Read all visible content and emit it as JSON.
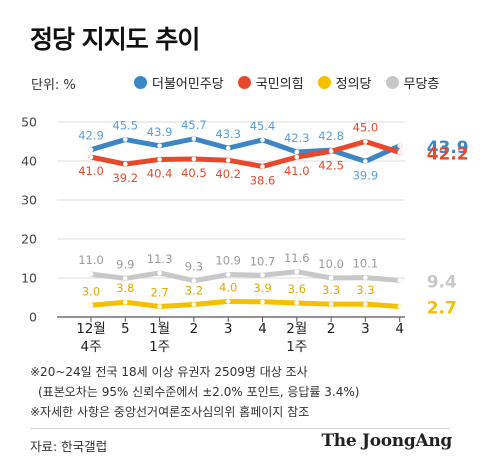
{
  "title": "정당 지지도 추이",
  "unit_label": "단위: %",
  "legend": [
    {
      "name": "더불어민주당",
      "color": "#3d86c6"
    },
    {
      "name": "국민의힘",
      "color": "#e8492c"
    },
    {
      "name": "정의당",
      "color": "#f5c000"
    },
    {
      "name": "무당층",
      "color": "#c8c8c8"
    }
  ],
  "chart_data": {
    "type": "line",
    "title": "정당 지지도 추이",
    "ylabel": "",
    "ylim": [
      0,
      50
    ],
    "yticks": [
      0,
      10,
      20,
      30,
      40,
      50
    ],
    "grid": true,
    "legend_position": "top",
    "categories": [
      {
        "line1": "12월",
        "line2": "4주"
      },
      {
        "line1": "5",
        "line2": ""
      },
      {
        "line1": "1월",
        "line2": "1주"
      },
      {
        "line1": "2",
        "line2": ""
      },
      {
        "line1": "3",
        "line2": ""
      },
      {
        "line1": "4",
        "line2": ""
      },
      {
        "line1": "2월",
        "line2": "1주"
      },
      {
        "line1": "2",
        "line2": ""
      },
      {
        "line1": "3",
        "line2": ""
      },
      {
        "line1": "4",
        "line2": ""
      }
    ],
    "series": [
      {
        "name": "더불어민주당",
        "color": "#3d86c6",
        "label_color": "#5a9fd6",
        "values": [
          42.9,
          45.5,
          43.9,
          45.7,
          43.3,
          45.4,
          42.3,
          42.8,
          39.9,
          43.9
        ],
        "labels": [
          "42.9",
          "45.5",
          "43.9",
          "45.7",
          "43.3",
          "45.4",
          "42.3",
          "42.8",
          "39.9",
          "43.9"
        ],
        "label_pos": [
          "above",
          "above",
          "above",
          "above",
          "above",
          "above",
          "above",
          "above",
          "below",
          "right"
        ]
      },
      {
        "name": "국민의힘",
        "color": "#e8492c",
        "label_color": "#e8492c",
        "values": [
          41.0,
          39.2,
          40.4,
          40.5,
          40.2,
          38.6,
          41.0,
          42.5,
          45.0,
          42.2
        ],
        "labels": [
          "41.0",
          "39.2",
          "40.4",
          "40.5",
          "40.2",
          "38.6",
          "41.0",
          "42.5",
          "45.0",
          "42.2"
        ],
        "label_pos": [
          "below",
          "below",
          "below",
          "below",
          "below",
          "below",
          "below",
          "below",
          "above",
          "right"
        ]
      },
      {
        "name": "무당층",
        "color": "#c8c8c8",
        "label_color": "#9a9a9a",
        "values": [
          11.0,
          9.9,
          11.3,
          9.3,
          10.9,
          10.7,
          11.6,
          10.0,
          10.1,
          9.4
        ],
        "labels": [
          "11.0",
          "9.9",
          "11.3",
          "9.3",
          "10.9",
          "10.7",
          "11.6",
          "10.0",
          "10.1",
          "9.4"
        ],
        "label_pos": [
          "above",
          "above",
          "above",
          "above",
          "above",
          "above",
          "above",
          "above",
          "above",
          "right"
        ]
      },
      {
        "name": "정의당",
        "color": "#f5c000",
        "label_color": "#e0a800",
        "values": [
          3.0,
          3.8,
          2.7,
          3.2,
          4.0,
          3.9,
          3.6,
          3.3,
          3.3,
          2.7
        ],
        "labels": [
          "3.0",
          "3.8",
          "2.7",
          "3.2",
          "4.0",
          "3.9",
          "3.6",
          "3.3",
          "3.3",
          "2.7"
        ],
        "label_pos": [
          "above",
          "above",
          "above",
          "above",
          "above",
          "above",
          "above",
          "above",
          "above",
          "right"
        ]
      }
    ]
  },
  "notes": {
    "line1": "※20~24일 전국 18세 이상 유권자 2509명 대상 조사",
    "line2": "(표본오차는 95% 신뢰수준에서 ±2.0% 포인트, 응답률 3.4%)",
    "line3": "※자세한 사항은 중앙선거여론조사심의위 홈페이지 참조"
  },
  "source": "자료: 한국갤럽",
  "brand": "The JoongAng"
}
